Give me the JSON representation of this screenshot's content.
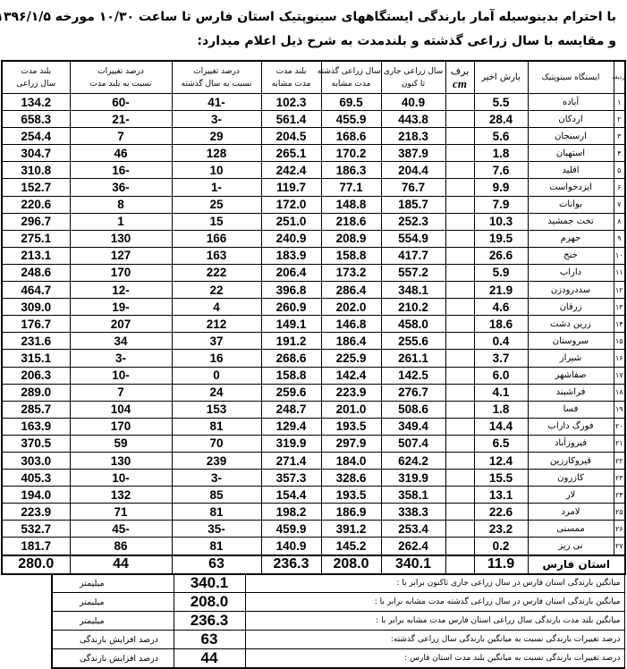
{
  "title_line1": "با احترام بدینوسیله آمار بارندگی ایستگاههای سینوپتیک استان فارس تا ساعت ۱۰/۳۰ مورخه ۱۳۹۶/۱/۵",
  "title_line2": "و مقایسه  با  سال زراعی گذشته و بلندمدت به شرح ذیل اعلام میدارد:",
  "headers": {
    "row": "ردیف",
    "station": "ایستگاه سینوپتیک",
    "recent": "بارش اخیر",
    "snow_top": "برف",
    "snow_unit": "cm",
    "current_top": "سال زراعی جاری",
    "current_bottom": "تا کنون",
    "last_top": "سال زراعی گذشته",
    "last_bottom": "مدت مشابه",
    "longterm_top": "بلند مدت",
    "longterm_bottom": "مدت مشابه",
    "chg_last_top": "درصد تغییرات",
    "chg_last_bottom": "نسبت به سال گذشته",
    "chg_long_top": "درصد تغییرات",
    "chg_long_bottom": "نسبت به بلند مدت",
    "longyear_top": "بلند مدت",
    "longyear_bottom": "سال زراعی"
  },
  "rows": [
    {
      "n": "۱",
      "station": "آباده",
      "recent": "5.5",
      "snow": "",
      "current": "40.9",
      "last": "69.5",
      "longterm": "102.3",
      "chg_last": "-41",
      "chg_long": "-60",
      "longyear": "134.2"
    },
    {
      "n": "۲",
      "station": "اردکان",
      "recent": "28.4",
      "snow": "",
      "current": "443.8",
      "last": "455.9",
      "longterm": "561.4",
      "chg_last": "-3",
      "chg_long": "-21",
      "longyear": "658.3"
    },
    {
      "n": "۳",
      "station": "ارسنجان",
      "recent": "5.6",
      "snow": "",
      "current": "218.3",
      "last": "168.6",
      "longterm": "204.5",
      "chg_last": "29",
      "chg_long": "7",
      "longyear": "254.4"
    },
    {
      "n": "۴",
      "station": "استهبان",
      "recent": "1.8",
      "snow": "",
      "current": "387.9",
      "last": "170.2",
      "longterm": "265.1",
      "chg_last": "128",
      "chg_long": "46",
      "longyear": "304.7"
    },
    {
      "n": "۵",
      "station": "اقلید",
      "recent": "7.6",
      "snow": "",
      "current": "204.4",
      "last": "186.3",
      "longterm": "242.4",
      "chg_last": "10",
      "chg_long": "-16",
      "longyear": "310.8"
    },
    {
      "n": "۶",
      "station": "ایزدخواست",
      "recent": "9.9",
      "snow": "",
      "current": "76.7",
      "last": "77.1",
      "longterm": "119.7",
      "chg_last": "-1",
      "chg_long": "-36",
      "longyear": "152.7"
    },
    {
      "n": "۷",
      "station": "بوانات",
      "recent": "7.9",
      "snow": "",
      "current": "185.7",
      "last": "148.8",
      "longterm": "172.0",
      "chg_last": "25",
      "chg_long": "8",
      "longyear": "220.6"
    },
    {
      "n": "۸",
      "station": "تخت جمشید",
      "recent": "10.3",
      "snow": "",
      "current": "252.3",
      "last": "218.6",
      "longterm": "251.0",
      "chg_last": "15",
      "chg_long": "1",
      "longyear": "296.7"
    },
    {
      "n": "۹",
      "station": "جهرم",
      "recent": "19.5",
      "snow": "",
      "current": "554.9",
      "last": "208.9",
      "longterm": "240.9",
      "chg_last": "166",
      "chg_long": "130",
      "longyear": "275.1"
    },
    {
      "n": "۱۰",
      "station": "خنج",
      "recent": "26.6",
      "snow": "",
      "current": "417.7",
      "last": "158.8",
      "longterm": "183.9",
      "chg_last": "163",
      "chg_long": "127",
      "longyear": "213.1"
    },
    {
      "n": "۱۱",
      "station": "داراب",
      "recent": "5.9",
      "snow": "",
      "current": "557.2",
      "last": "173.2",
      "longterm": "206.4",
      "chg_last": "222",
      "chg_long": "170",
      "longyear": "248.6"
    },
    {
      "n": "۱۲",
      "station": "سددرودزن",
      "recent": "21.9",
      "snow": "",
      "current": "348.1",
      "last": "286.4",
      "longterm": "396.8",
      "chg_last": "22",
      "chg_long": "-12",
      "longyear": "464.7"
    },
    {
      "n": "۱۳",
      "station": "زرقان",
      "recent": "4.6",
      "snow": "",
      "current": "210.2",
      "last": "202.0",
      "longterm": "260.9",
      "chg_last": "4",
      "chg_long": "-19",
      "longyear": "309.0"
    },
    {
      "n": "۱۴",
      "station": "زرین دشت",
      "recent": "18.6",
      "snow": "",
      "current": "458.0",
      "last": "146.8",
      "longterm": "149.1",
      "chg_last": "212",
      "chg_long": "207",
      "longyear": "176.7"
    },
    {
      "n": "۱۵",
      "station": "سروستان",
      "recent": "0.4",
      "snow": "",
      "current": "255.6",
      "last": "186.4",
      "longterm": "191.2",
      "chg_last": "37",
      "chg_long": "34",
      "longyear": "231.6"
    },
    {
      "n": "۱۶",
      "station": "شیراز",
      "recent": "3.7",
      "snow": "",
      "current": "261.1",
      "last": "225.9",
      "longterm": "268.6",
      "chg_last": "16",
      "chg_long": "-3",
      "longyear": "315.1"
    },
    {
      "n": "۱۷",
      "station": "صفاشهر",
      "recent": "6.0",
      "snow": "",
      "current": "142.5",
      "last": "142.4",
      "longterm": "158.8",
      "chg_last": "0",
      "chg_long": "-10",
      "longyear": "206.3"
    },
    {
      "n": "۱۸",
      "station": "فراشبند",
      "recent": "4.1",
      "snow": "",
      "current": "276.7",
      "last": "223.9",
      "longterm": "259.6",
      "chg_last": "24",
      "chg_long": "7",
      "longyear": "289.0"
    },
    {
      "n": "۱۹",
      "station": "فسا",
      "recent": "1.8",
      "snow": "",
      "current": "508.6",
      "last": "201.0",
      "longterm": "248.7",
      "chg_last": "153",
      "chg_long": "104",
      "longyear": "285.7"
    },
    {
      "n": "۲۰",
      "station": "فورگ داراب",
      "recent": "14.4",
      "snow": "",
      "current": "349.4",
      "last": "193.5",
      "longterm": "129.4",
      "chg_last": "81",
      "chg_long": "170",
      "longyear": "163.9"
    },
    {
      "n": "۲۱",
      "station": "فیروزآباد",
      "recent": "6.5",
      "snow": "",
      "current": "507.4",
      "last": "297.9",
      "longterm": "319.9",
      "chg_last": "70",
      "chg_long": "59",
      "longyear": "370.5"
    },
    {
      "n": "۲۲",
      "station": "قیروکارزین",
      "recent": "12.4",
      "snow": "",
      "current": "624.2",
      "last": "184.0",
      "longterm": "271.4",
      "chg_last": "239",
      "chg_long": "130",
      "longyear": "303.0"
    },
    {
      "n": "۲۳",
      "station": "کازرون",
      "recent": "15.5",
      "snow": "",
      "current": "319.9",
      "last": "328.6",
      "longterm": "357.3",
      "chg_last": "-3",
      "chg_long": "-10",
      "longyear": "405.3"
    },
    {
      "n": "۲۴",
      "station": "لار",
      "recent": "13.1",
      "snow": "",
      "current": "358.1",
      "last": "193.5",
      "longterm": "154.4",
      "chg_last": "85",
      "chg_long": "132",
      "longyear": "194.0"
    },
    {
      "n": "۲۵",
      "station": "لامرد",
      "recent": "22.6",
      "snow": "",
      "current": "338.3",
      "last": "186.9",
      "longterm": "198.2",
      "chg_last": "81",
      "chg_long": "71",
      "longyear": "223.9"
    },
    {
      "n": "۲۶",
      "station": "ممسنی",
      "recent": "23.2",
      "snow": "",
      "current": "253.4",
      "last": "391.2",
      "longterm": "459.9",
      "chg_last": "-35",
      "chg_long": "-45",
      "longyear": "532.7"
    },
    {
      "n": "۲۷",
      "station": "نی ریز",
      "recent": "0.2",
      "snow": "",
      "current": "262.4",
      "last": "145.2",
      "longterm": "140.9",
      "chg_last": "81",
      "chg_long": "86",
      "longyear": "181.7"
    }
  ],
  "total": {
    "station": "استان فارس",
    "recent": "11.9",
    "snow": "",
    "current": "340.1",
    "last": "208.0",
    "longterm": "236.3",
    "chg_last": "63",
    "chg_long": "44",
    "longyear": "280.0"
  },
  "summary": [
    {
      "label": "میانگین بارندگی استان فارس در  سال زراعی جاری تاکنون برابر با  :",
      "value": "340.1",
      "unit": "میلیمتر"
    },
    {
      "label": "میانگین بارندگی استان فارس در سال زراعی گذشته مدت مشابه برابر با  :",
      "value": "208.0",
      "unit": "میلیمتر"
    },
    {
      "label": "میانگین بلند مدت بارندگی سال زراعی استان فارس مدت مشابه برابر با  :",
      "value": "236.3",
      "unit": "میلیمتر"
    },
    {
      "label": "درصد تغییرات بارندگی نسبت به میانگین بارندگی سال زراعی گذشته:",
      "value": "63",
      "unit": "درصد افزایش بارندگی"
    },
    {
      "label": "درصد تغییرات بارندگی نسبت به میانگین بلند مدت استان فارس :",
      "value": "44",
      "unit": "درصد افزایش بارندگی"
    }
  ]
}
